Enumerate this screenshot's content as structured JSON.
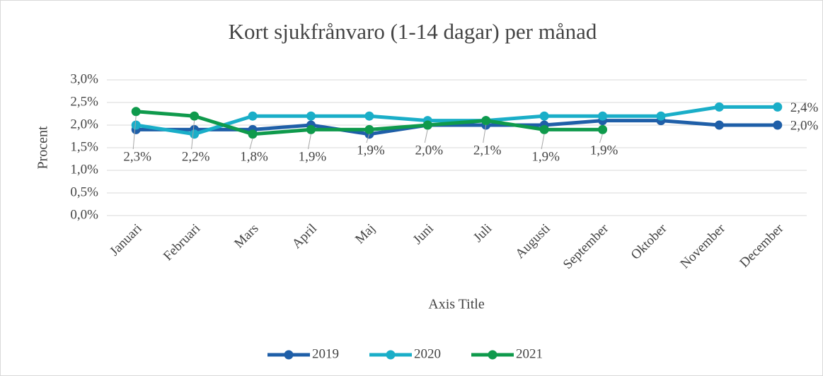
{
  "chart_data": {
    "type": "line",
    "title": "Kort sjukfrånvaro (1-14 dagar) per månad",
    "y_label": "Procent",
    "x_label": "Axis Title",
    "categories": [
      "Januari",
      "Februari",
      "Mars",
      "April",
      "Maj",
      "Juni",
      "Juli",
      "Augusti",
      "September",
      "Oktober",
      "November",
      "December"
    ],
    "series": [
      {
        "name": "2019",
        "color": "#1f5fa8",
        "values": [
          1.9,
          1.9,
          1.9,
          2.0,
          1.8,
          2.0,
          2.0,
          2.0,
          2.1,
          2.1,
          2.0,
          2.0
        ],
        "value_labels": [
          null,
          null,
          null,
          null,
          null,
          null,
          null,
          null,
          null,
          null,
          null,
          "2,0%"
        ]
      },
      {
        "name": "2020",
        "color": "#1aaec8",
        "values": [
          2.0,
          1.8,
          2.2,
          2.2,
          2.2,
          2.1,
          2.1,
          2.2,
          2.2,
          2.2,
          2.4,
          2.4
        ],
        "value_labels": [
          null,
          null,
          null,
          null,
          null,
          null,
          null,
          null,
          null,
          null,
          null,
          "2,4%"
        ]
      },
      {
        "name": "2021",
        "color": "#0f9a4c",
        "values": [
          2.3,
          2.2,
          1.8,
          1.9,
          1.9,
          2.0,
          2.1,
          1.9,
          1.9,
          null,
          null,
          null
        ],
        "value_labels": [
          "2,3%",
          "2,2%",
          "1,8%",
          "1,9%",
          "1,9%",
          "2,0%",
          "2,1%",
          "1,9%",
          "1,9%",
          null,
          null,
          null
        ]
      }
    ],
    "ylim": [
      0,
      3
    ],
    "yticks": [
      {
        "value": 0,
        "label": "0,0%"
      },
      {
        "value": 0.5,
        "label": "0,5%"
      },
      {
        "value": 1,
        "label": "1,0%"
      },
      {
        "value": 1.5,
        "label": "1,5%"
      },
      {
        "value": 2,
        "label": "2,0%"
      },
      {
        "value": 2.5,
        "label": "2,5%"
      },
      {
        "value": 3,
        "label": "3,0%"
      }
    ],
    "grid": true,
    "legend": "bottom"
  }
}
